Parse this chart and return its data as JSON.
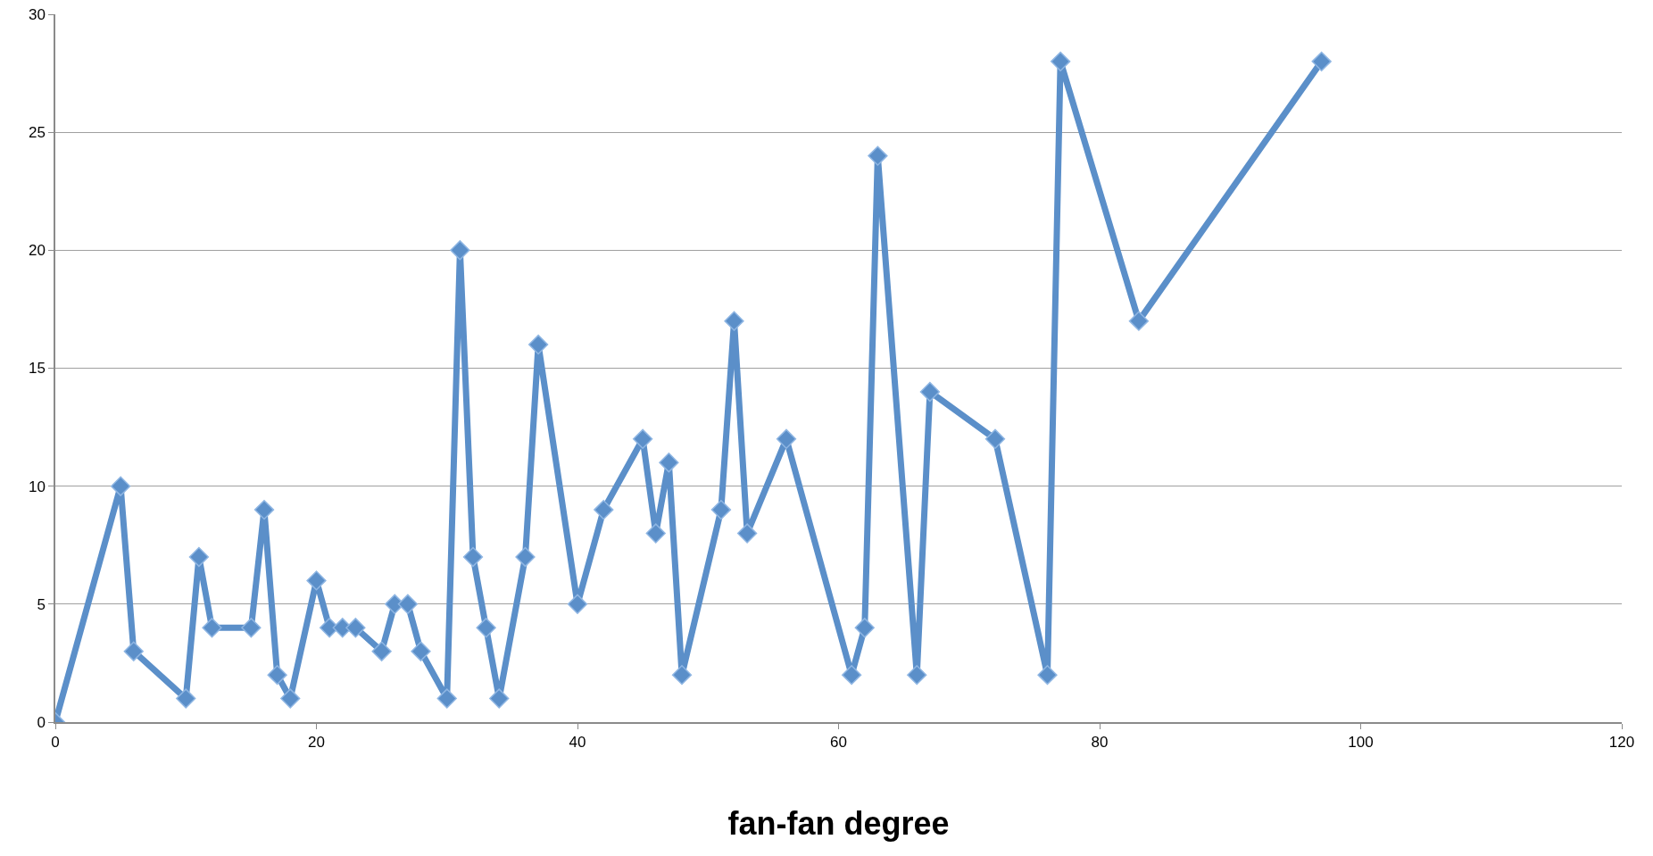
{
  "chart_data": {
    "type": "line",
    "xlabel": "fan-fan degree",
    "x": [
      0,
      5,
      6,
      10,
      11,
      12,
      15,
      16,
      17,
      18,
      20,
      21,
      22,
      23,
      25,
      26,
      27,
      28,
      30,
      31,
      32,
      33,
      34,
      36,
      37,
      40,
      42,
      45,
      46,
      47,
      48,
      51,
      52,
      53,
      56,
      61,
      62,
      63,
      66,
      67,
      72,
      76,
      77,
      83,
      97
    ],
    "series": [
      {
        "color": "#5b8fc9",
        "values": [
          0,
          10,
          3,
          1,
          7,
          4,
          4,
          9,
          2,
          1,
          6,
          4,
          4,
          4,
          3,
          5,
          5,
          3,
          1,
          20,
          7,
          4,
          1,
          7,
          16,
          5,
          9,
          12,
          8,
          11,
          2,
          9,
          17,
          8,
          12,
          2,
          4,
          24,
          2,
          14,
          12,
          2,
          28,
          17,
          28
        ]
      }
    ],
    "xlim": [
      0,
      120
    ],
    "xticks": [
      0,
      20,
      40,
      60,
      80,
      100,
      120
    ],
    "ylim": [
      0,
      30
    ],
    "yticks": [
      0,
      5,
      10,
      15,
      20,
      25,
      30
    ],
    "grid": "y",
    "marker": "diamond",
    "line_style": "solid"
  }
}
